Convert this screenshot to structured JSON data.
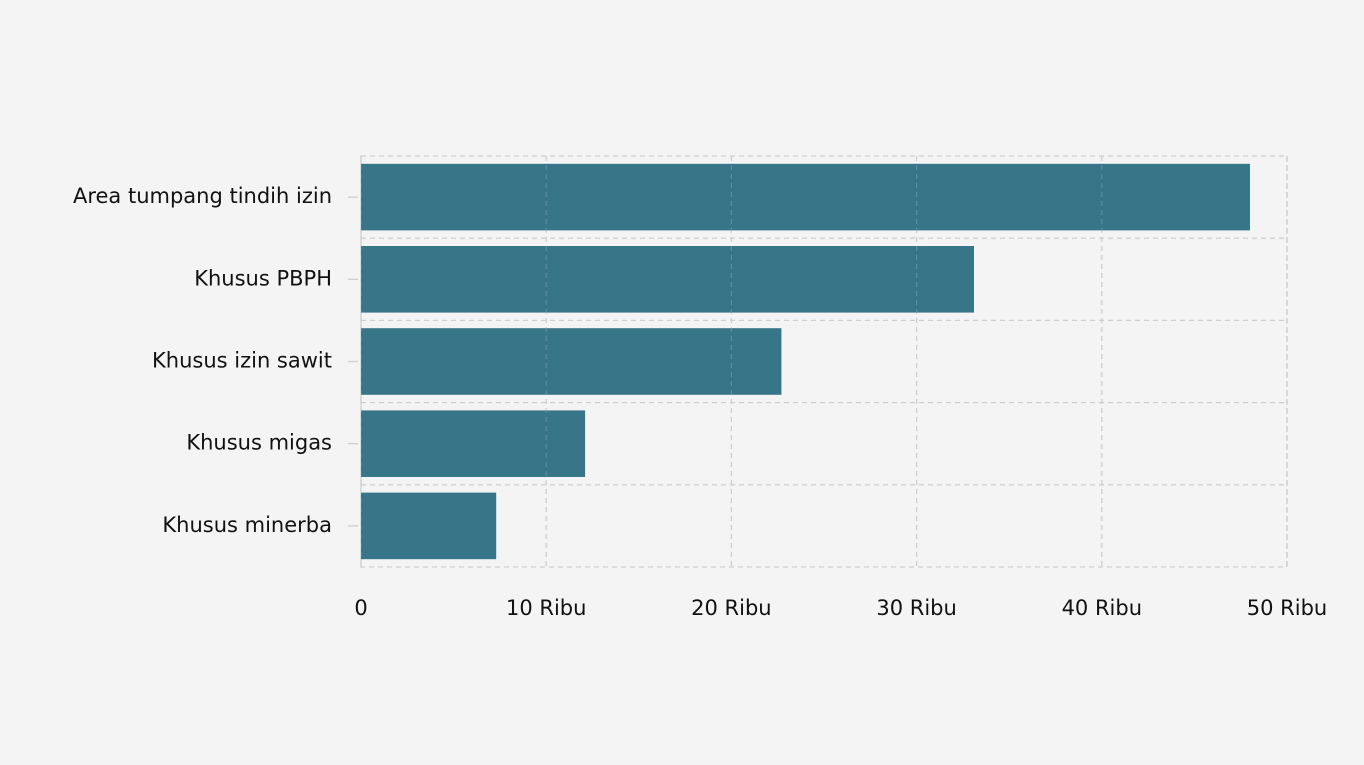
{
  "chart_data": {
    "type": "hbar",
    "categories": [
      "Area tumpang tindih izin",
      "Khusus PBPH",
      "Khusus izin sawit",
      "Khusus migas",
      "Khusus minerba"
    ],
    "values": [
      48000,
      33100,
      22700,
      12100,
      7300
    ],
    "color": "#337287",
    "xlim": [
      0,
      50000
    ],
    "xticks": [
      0,
      {
        "value": 10000,
        "label": "10 Ribu"
      },
      {
        "value": 20000,
        "label": "20 Ribu"
      },
      {
        "value": 30000,
        "label": "30 Ribu"
      },
      {
        "value": 40000,
        "label": "40 Ribu"
      },
      {
        "value": 50000,
        "label": "50 Ribu"
      }
    ],
    "grid": true
  }
}
